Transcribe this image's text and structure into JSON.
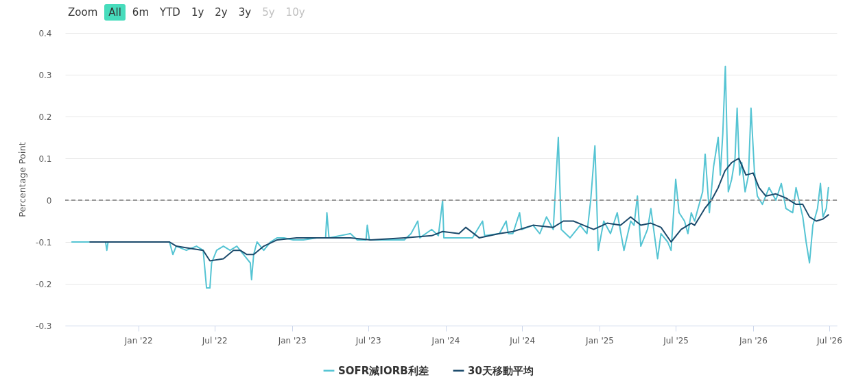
{
  "chart_data": {
    "type": "line",
    "ylabel": "Percentage Point",
    "annotations": [
      "Zoom",
      "All",
      "6m",
      "YTD",
      "1y",
      "2y",
      "3y",
      "5y",
      "10y"
    ],
    "xlim": [
      "2021-07-11",
      "2026-07-19"
    ],
    "xticks": [
      {
        "value": "2022-01-01",
        "label": "Jan '22"
      },
      {
        "value": "2022-07-01",
        "label": "Jul '22"
      },
      {
        "value": "2023-01-01",
        "label": "Jan '23"
      },
      {
        "value": "2023-07-01",
        "label": "Jul '23"
      },
      {
        "value": "2024-01-01",
        "label": "Jan '24"
      },
      {
        "value": "2024-07-01",
        "label": "Jul '24"
      },
      {
        "value": "2025-01-01",
        "label": "Jan '25"
      },
      {
        "value": "2025-07-01",
        "label": "Jul '25"
      },
      {
        "value": "2026-01-01",
        "label": "Jan '26"
      },
      {
        "value": "2026-07-01",
        "label": "Jul '26"
      }
    ],
    "ylim": [
      -0.3,
      0.4
    ],
    "yticks": [
      -0.3,
      -0.2,
      -0.1,
      0,
      0.1,
      0.2,
      0.3,
      0.4
    ],
    "grid": "y",
    "legend": "bottom",
    "marker": "none",
    "line_style": "solid",
    "ref_lines": [
      {
        "axis": "y",
        "value": 0,
        "color": "#999999",
        "line_style": "dashed"
      }
    ],
    "series": [
      {
        "name": "SOFR減IORB利差",
        "color": "#55c4d3",
        "x": [
          "2021-07-27",
          "2021-10-15",
          "2021-10-18",
          "2021-10-21",
          "2022-01-27",
          "2022-03-16",
          "2022-03-24",
          "2022-04-01",
          "2022-04-25",
          "2022-05-19",
          "2022-06-04",
          "2022-06-12",
          "2022-06-20",
          "2022-06-24",
          "2022-07-06",
          "2022-07-22",
          "2022-08-07",
          "2022-08-23",
          "2022-09-08",
          "2022-09-24",
          "2022-09-27",
          "2022-10-02",
          "2022-10-10",
          "2022-10-26",
          "2022-11-11",
          "2022-11-27",
          "2022-12-13",
          "2023-01-04",
          "2023-01-28",
          "2023-03-01",
          "2023-03-22",
          "2023-03-25",
          "2023-03-30",
          "2023-05-20",
          "2023-06-05",
          "2023-06-26",
          "2023-06-29",
          "2023-07-04",
          "2023-09-25",
          "2023-10-11",
          "2023-10-27",
          "2023-11-01",
          "2023-11-29",
          "2023-12-15",
          "2023-12-25",
          "2023-12-28",
          "2024-03-05",
          "2024-03-29",
          "2024-04-03",
          "2024-05-08",
          "2024-05-24",
          "2024-05-29",
          "2024-06-09",
          "2024-06-25",
          "2024-06-30",
          "2024-07-27",
          "2024-08-12",
          "2024-08-28",
          "2024-09-13",
          "2024-09-25",
          "2024-10-02",
          "2024-10-23",
          "2024-11-16",
          "2024-12-02",
          "2024-12-11",
          "2024-12-21",
          "2024-12-29",
          "2025-01-11",
          "2025-01-27",
          "2025-02-12",
          "2025-02-28",
          "2025-03-16",
          "2025-03-24",
          "2025-04-01",
          "2025-04-09",
          "2025-04-25",
          "2025-05-03",
          "2025-05-19",
          "2025-05-27",
          "2025-06-12",
          "2025-06-20",
          "2025-06-28",
          "2025-07-01",
          "2025-07-09",
          "2025-07-22",
          "2025-07-30",
          "2025-08-07",
          "2025-08-15",
          "2025-08-23",
          "2025-09-03",
          "2025-09-09",
          "2025-09-19",
          "2025-09-29",
          "2025-10-10",
          "2025-10-15",
          "2025-10-21",
          "2025-10-27",
          "2025-11-03",
          "2025-11-11",
          "2025-11-19",
          "2025-11-24",
          "2025-11-30",
          "2025-12-05",
          "2025-12-13",
          "2025-12-21",
          "2025-12-27",
          "2026-01-04",
          "2026-01-11",
          "2026-01-23",
          "2026-02-08",
          "2026-02-24",
          "2026-03-09",
          "2026-03-20",
          "2026-04-05",
          "2026-04-13",
          "2026-04-29",
          "2026-05-07",
          "2026-05-15",
          "2026-05-23",
          "2026-06-03",
          "2026-06-10",
          "2026-06-16",
          "2026-06-24",
          "2026-06-29"
        ],
        "values": [
          -0.1,
          -0.1,
          -0.12,
          -0.1,
          -0.1,
          -0.1,
          -0.13,
          -0.11,
          -0.12,
          -0.11,
          -0.12,
          -0.21,
          -0.21,
          -0.15,
          -0.12,
          -0.11,
          -0.12,
          -0.11,
          -0.13,
          -0.15,
          -0.19,
          -0.13,
          -0.1,
          -0.12,
          -0.1,
          -0.09,
          -0.09,
          -0.095,
          -0.095,
          -0.09,
          -0.09,
          -0.03,
          -0.09,
          -0.08,
          -0.095,
          -0.095,
          -0.06,
          -0.095,
          -0.095,
          -0.08,
          -0.05,
          -0.09,
          -0.07,
          -0.085,
          0.0,
          -0.09,
          -0.09,
          -0.05,
          -0.085,
          -0.08,
          -0.05,
          -0.08,
          -0.08,
          -0.03,
          -0.07,
          -0.06,
          -0.08,
          -0.04,
          -0.07,
          0.15,
          -0.07,
          -0.09,
          -0.06,
          -0.08,
          0.0,
          0.13,
          -0.12,
          -0.05,
          -0.08,
          -0.03,
          -0.12,
          -0.05,
          -0.06,
          0.01,
          -0.11,
          -0.07,
          -0.02,
          -0.14,
          -0.08,
          -0.1,
          -0.12,
          0.0,
          0.05,
          -0.03,
          -0.05,
          -0.08,
          -0.03,
          -0.05,
          -0.02,
          0.02,
          0.11,
          -0.03,
          0.08,
          0.15,
          0.06,
          0.16,
          0.32,
          0.02,
          0.05,
          0.1,
          0.22,
          0.06,
          0.09,
          0.02,
          0.06,
          0.22,
          0.07,
          0.01,
          -0.01,
          0.03,
          0.0,
          0.04,
          -0.02,
          -0.03,
          0.03,
          -0.04,
          -0.1,
          -0.15,
          -0.06,
          -0.02,
          0.04,
          -0.04,
          -0.02,
          0.03
        ]
      },
      {
        "name": "30天移動平均",
        "color": "#1b4a6b",
        "x": [
          "2021-09-08",
          "2022-03-16",
          "2022-04-01",
          "2022-05-03",
          "2022-06-04",
          "2022-06-20",
          "2022-07-22",
          "2022-08-15",
          "2022-08-31",
          "2022-09-16",
          "2022-10-02",
          "2022-10-26",
          "2022-11-27",
          "2023-01-12",
          "2023-03-17",
          "2023-04-18",
          "2023-05-20",
          "2023-07-07",
          "2023-09-25",
          "2023-11-29",
          "2023-12-25",
          "2024-02-02",
          "2024-02-18",
          "2024-03-21",
          "2024-05-08",
          "2024-06-09",
          "2024-07-27",
          "2024-09-13",
          "2024-10-07",
          "2024-10-31",
          "2024-11-24",
          "2024-12-18",
          "2025-01-19",
          "2025-02-20",
          "2025-03-16",
          "2025-04-09",
          "2025-05-03",
          "2025-05-27",
          "2025-06-20",
          "2025-07-14",
          "2025-08-07",
          "2025-08-15",
          "2025-09-08",
          "2025-09-24",
          "2025-10-10",
          "2025-10-26",
          "2025-11-11",
          "2025-11-28",
          "2025-12-15",
          "2026-01-01",
          "2026-01-15",
          "2026-01-31",
          "2026-02-24",
          "2026-03-20",
          "2026-04-13",
          "2026-04-29",
          "2026-05-15",
          "2026-05-31",
          "2026-06-16",
          "2026-06-29"
        ],
        "values": [
          -0.1,
          -0.1,
          -0.11,
          -0.115,
          -0.12,
          -0.145,
          -0.14,
          -0.12,
          -0.12,
          -0.13,
          -0.13,
          -0.11,
          -0.095,
          -0.09,
          -0.09,
          -0.09,
          -0.09,
          -0.095,
          -0.09,
          -0.085,
          -0.075,
          -0.08,
          -0.065,
          -0.09,
          -0.08,
          -0.075,
          -0.06,
          -0.065,
          -0.05,
          -0.05,
          -0.06,
          -0.07,
          -0.055,
          -0.06,
          -0.04,
          -0.06,
          -0.055,
          -0.065,
          -0.1,
          -0.07,
          -0.055,
          -0.06,
          -0.02,
          0.0,
          0.03,
          0.07,
          0.09,
          0.1,
          0.06,
          0.065,
          0.03,
          0.01,
          0.015,
          0.005,
          -0.01,
          -0.01,
          -0.04,
          -0.05,
          -0.045,
          -0.035
        ]
      }
    ]
  }
}
